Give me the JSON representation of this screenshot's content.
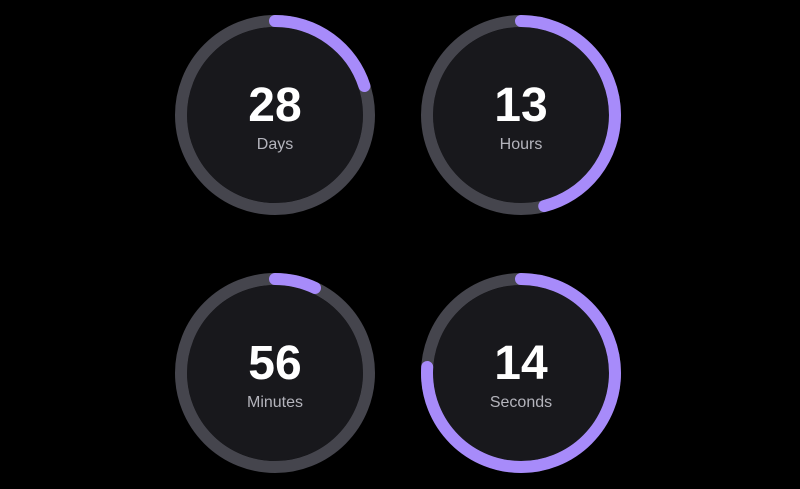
{
  "colors": {
    "track": "#45454d",
    "progress": "#a78bfa",
    "face": "#18181c",
    "background": "#000000"
  },
  "timers": [
    {
      "value": "28",
      "label": "Days",
      "progress": 0.2
    },
    {
      "value": "13",
      "label": "Hours",
      "progress": 0.46
    },
    {
      "value": "56",
      "label": "Minutes",
      "progress": 0.07
    },
    {
      "value": "14",
      "label": "Seconds",
      "progress": 0.76
    }
  ]
}
